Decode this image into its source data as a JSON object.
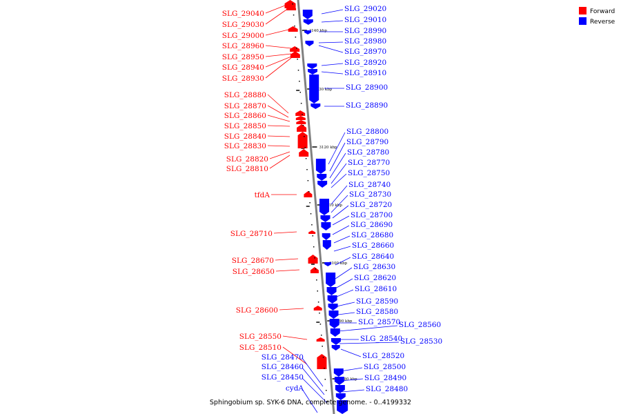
{
  "legend": [
    {
      "label": "Forward",
      "color": "#ff0000"
    },
    {
      "label": "Reverse",
      "color": "#0000ff"
    }
  ],
  "colors": {
    "forward": "#ff0000",
    "reverse": "#0000ff",
    "axis": "#808080",
    "tick": "#000000"
  },
  "caption": "Sphingobium sp. SYK-6 DNA, complete genome. - 0..4199332",
  "scale_labels": [
    "3140 kbp",
    "3130 kbp",
    "3120 kbp",
    "3110 kbp",
    "3100 kbp",
    "3090 kbp",
    "3080 kbp"
  ],
  "forward_genes": [
    "SLG_29040",
    "SLG_29030",
    "SLG_29000",
    "SLG_28960",
    "SLG_28950",
    "SLG_28940",
    "SLG_28930",
    "SLG_28880",
    "SLG_28870",
    "SLG_28860",
    "SLG_28850",
    "SLG_28840",
    "SLG_28830",
    "SLG_28820",
    "SLG_28810",
    "tfdA",
    "SLG_28710",
    "SLG_28670",
    "SLG_28650",
    "SLG_28600",
    "SLG_28550",
    "SLG_28510"
  ],
  "reverse_genes": [
    "SLG_29020",
    "SLG_29010",
    "SLG_28990",
    "SLG_28980",
    "SLG_28970",
    "SLG_28920",
    "SLG_28910",
    "SLG_28900",
    "SLG_28890",
    "SLG_28800",
    "SLG_28790",
    "SLG_28780",
    "SLG_28770",
    "SLG_28750",
    "SLG_28740",
    "SLG_28730",
    "SLG_28720",
    "SLG_28700",
    "SLG_28690",
    "SLG_28680",
    "SLG_28660",
    "SLG_28640",
    "SLG_28630",
    "SLG_28620",
    "SLG_28610",
    "SLG_28590",
    "SLG_28580",
    "SLG_28570",
    "SLG_28560",
    "SLG_28540",
    "SLG_28530",
    "SLG_28520",
    "SLG_28500",
    "SLG_28490",
    "SLG_28480",
    "SLG_28470",
    "SLG_28460",
    "SLG_28450",
    "cydA"
  ]
}
